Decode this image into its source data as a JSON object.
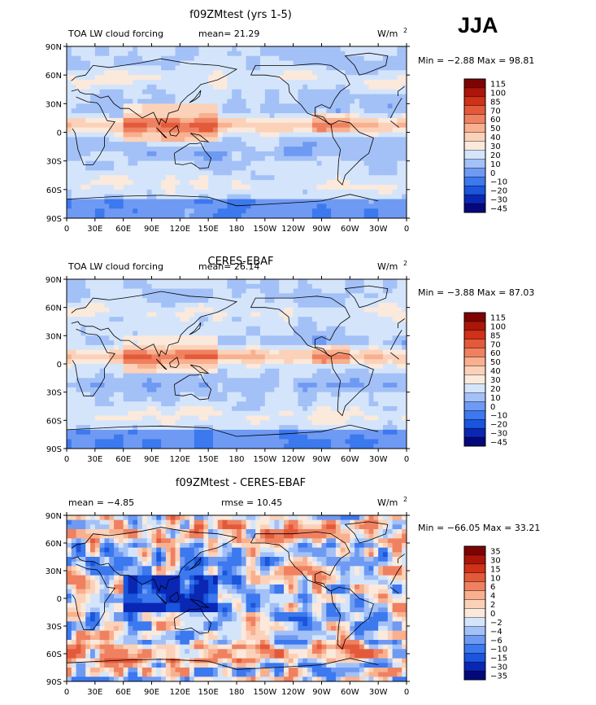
{
  "season": "JJA",
  "colors": {
    "levels_abs": [
      "#05087a",
      "#0a27b4",
      "#1a55dc",
      "#3c78ee",
      "#6f9af3",
      "#a3c1f7",
      "#d4e5fb",
      "#fbe9dc",
      "#fbd2b9",
      "#f8b08f",
      "#ef8161",
      "#e35a3b",
      "#cf3119",
      "#ac1509",
      "#7e0303"
    ],
    "levels_diff": [
      "#05087a",
      "#0a27b4",
      "#1a55dc",
      "#3c78ee",
      "#6f9af3",
      "#a3c1f7",
      "#d4e5fb",
      "#fbe9dc",
      "#fbd2b9",
      "#f8b08f",
      "#ef8161",
      "#e35a3b",
      "#cf3119",
      "#ac1509",
      "#7e0303"
    ],
    "coast": "#000000"
  },
  "chart_data": [
    {
      "type": "heatmap",
      "title": "f09ZMtest (yrs 1-5)",
      "label_left": "TOA LW cloud forcing",
      "stat_text": "mean=  21.29",
      "units": "W/m",
      "units_exp": "2",
      "min_max": "Min =  −2.88 Max =  98.81",
      "y_ticks": [
        "90N",
        "60N",
        "30N",
        "0",
        "30S",
        "60S",
        "90S"
      ],
      "x_ticks": [
        "0",
        "30E",
        "60E",
        "90E",
        "120E",
        "150E",
        "180",
        "150W",
        "120W",
        "90W",
        "60W",
        "30W",
        "0"
      ],
      "colorbar_labels": [
        "115",
        "100",
        "85",
        "70",
        "60",
        "50",
        "40",
        "30",
        "20",
        "10",
        "0",
        "−10",
        "−20",
        "−30",
        "−45"
      ],
      "colorbar_key": "abs"
    },
    {
      "type": "heatmap",
      "title": "CERES-EBAF",
      "label_left": "TOA LW cloud forcing",
      "stat_text": "mean=  26.14",
      "units": "W/m",
      "units_exp": "2",
      "min_max": "Min =  −3.88 Max =  87.03",
      "y_ticks": [
        "90N",
        "60N",
        "30N",
        "0",
        "30S",
        "60S",
        "90S"
      ],
      "x_ticks": [
        "0",
        "30E",
        "60E",
        "90E",
        "120E",
        "150E",
        "180",
        "150W",
        "120W",
        "90W",
        "60W",
        "30W",
        "0"
      ],
      "colorbar_labels": [
        "115",
        "100",
        "85",
        "70",
        "60",
        "50",
        "40",
        "30",
        "20",
        "10",
        "0",
        "−10",
        "−20",
        "−30",
        "−45"
      ],
      "colorbar_key": "abs"
    },
    {
      "type": "heatmap",
      "title": "f09ZMtest - CERES-EBAF",
      "label_left": "mean =   −4.85",
      "stat_text": "rmse =  10.45",
      "units": "W/m",
      "units_exp": "2",
      "min_max": "Min = −66.05 Max =  33.21",
      "y_ticks": [
        "90N",
        "60N",
        "30N",
        "0",
        "30S",
        "60S",
        "90S"
      ],
      "x_ticks": [
        "0",
        "30E",
        "60E",
        "90E",
        "120E",
        "150E",
        "180",
        "150W",
        "120W",
        "90W",
        "60W",
        "30W",
        "0"
      ],
      "colorbar_labels": [
        "35",
        "30",
        "15",
        "10",
        "6",
        "4",
        "2",
        "0",
        "−2",
        "−4",
        "−6",
        "−10",
        "−15",
        "−30",
        "−35"
      ],
      "colorbar_key": "diff"
    }
  ]
}
